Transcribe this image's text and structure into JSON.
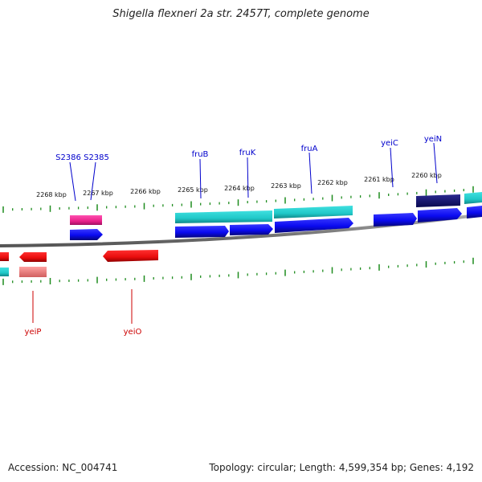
{
  "title": "Shigella flexneri 2a str. 2457T, complete genome",
  "footer": {
    "accession": "Accession: NC_004741",
    "topology": "Topology: circular; Length: 4,599,354 bp; Genes: 4,192"
  },
  "colors": {
    "forward_gene": "#0a0af0",
    "forward_gene_dark": "#0a0a70",
    "forward_cds_track": "#20c8c8",
    "reverse_gene": "#e80c0c",
    "reverse_gene_light": "#f08080",
    "rna_pink": "#e8208a",
    "tick": "#1e8c1e",
    "backbone": "#7a7a7a",
    "forward_label": "#0000cc",
    "reverse_label": "#cc0000"
  },
  "scale_labels": [
    "2268 kbp",
    "2267 kbp",
    "2266 kbp",
    "2265 kbp",
    "2264 kbp",
    "2263 kbp",
    "2262 kbp",
    "2261 kbp",
    "2260 kbp"
  ],
  "forward_genes": [
    "S2386",
    "S2385",
    "fruB",
    "fruK",
    "fruA",
    "yeiC",
    "yeiN"
  ],
  "reverse_genes": [
    "yeiP",
    "yeiO"
  ]
}
